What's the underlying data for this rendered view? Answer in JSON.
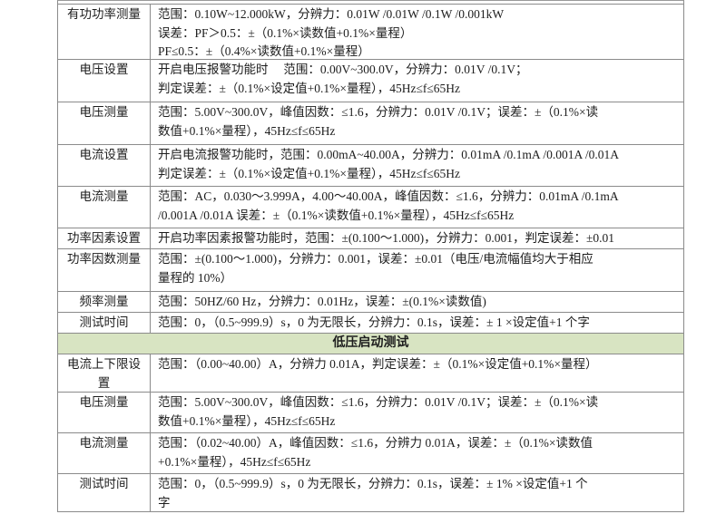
{
  "page": {
    "background": "#ffffff",
    "text_color": "#1d1d1d",
    "border_color": "#8b8b8b"
  },
  "table": {
    "section_header": {
      "label": "低压启动测试",
      "background": "#d8e4c2"
    },
    "rows": [
      {
        "label": "有功功率测量",
        "content": "范围：0.10W~12.000kW，分辨力：0.01W /0.01W /0.1W /0.001kW\n误差：PF＞0.5：±（0.1%×读数值+0.1%×量程）\nPF≤0.5：±（0.4%×读数值+0.1%×量程）"
      },
      {
        "label": "电压设置",
        "content": "开启电压报警功能时　 范围：0.00V~300.0V，分辨力：0.01V /0.1V；\n判定误差：±（0.1%×设定值+0.1%×量程），45Hz≤f≤65Hz"
      },
      {
        "label": "电压测量",
        "content": "范围：5.00V~300.0V，峰值因数：≤1.6，分辨力：0.01V /0.1V；误差：±（0.1%×读\n数值+0.1%×量程），45Hz≤f≤65Hz"
      },
      {
        "label": "电流设置",
        "content": "开启电流报警功能时，范围：0.00mA~40.00A，分辨力：0.01mA /0.1mA /0.001A /0.01A\n判定误差：±（0.1%×设定值+0.1%×量程），45Hz≤f≤65Hz"
      },
      {
        "label": "电流测量",
        "content": "范围：AC，0.030～3.999A，4.00～40.00A，峰值因数：≤1.6，分辨力：0.01mA /0.1mA\n/0.001A /0.01A 误差：±（0.1%×读数值+0.1%×量程），45Hz≤f≤65Hz"
      },
      {
        "label": "功率因素设置",
        "content": "开启功率因素报警功能时，范围：±(0.100～1.000)，分辨力：0.001，判定误差：±0.01"
      },
      {
        "label": "功率因数测量",
        "content": "范围：±(0.100～1.000)，分辨力：0.001，误差：±0.01（电压/电流幅值均大于相应\n量程的 10%）"
      },
      {
        "label": "频率测量",
        "content": "范围：50HZ/60 Hz，分辨力：0.01Hz，误差：±(0.1%×读数值)"
      },
      {
        "label": "测试时间",
        "content": "范围：0，（0.5~999.9）s，0 为无限长，分辨力：0.1s，误差：± 1 ×设定值+1 个字"
      }
    ],
    "rows_low_voltage": [
      {
        "label": "电流上下限设置",
        "content": "范围：（0.00~40.00）A，分辨力 0.01A，判定误差：±（0.1%×设定值+0.1%×量程）"
      },
      {
        "label": "电压测量",
        "content": "范围：5.00V~300.0V，峰值因数：≤1.6，分辨力：0.01V /0.1V；误差：±（0.1%×读\n数值+0.1%×量程），45Hz≤f≤65Hz"
      },
      {
        "label": "电流测量",
        "content": "范围：（0.02~40.00）A，峰值因数：≤1.6，分辨力 0.01A，误差：±（0.1%×读数值\n+0.1%×量程），45Hz≤f≤65Hz"
      },
      {
        "label": "测试时间",
        "content": "范围：0，（0.5~999.9）s，0 为无限长，分辨力：0.1s，误差：± 1% ×设定值+1 个\n字"
      }
    ]
  }
}
